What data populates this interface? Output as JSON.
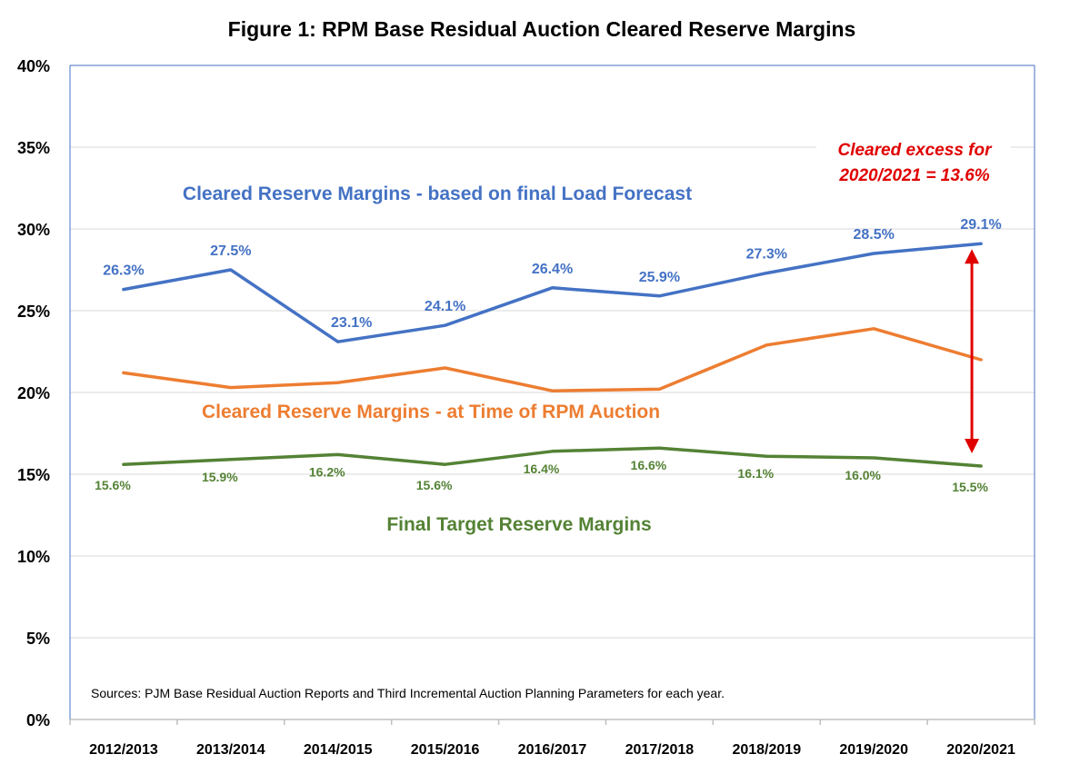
{
  "colors": {
    "cleared_final": "#4472C4",
    "cleared_auction": "#ED7D31",
    "target": "#548235",
    "annotation": "#E00000",
    "grid": "#d9d9d9",
    "frame": "#4472C4"
  },
  "chart_data": {
    "type": "line",
    "title": "Figure 1: RPM Base Residual Auction Cleared Reserve Margins",
    "categories": [
      "2012/2013",
      "2013/2014",
      "2014/2015",
      "2015/2016",
      "2016/2017",
      "2017/2018",
      "2018/2019",
      "2019/2020",
      "2020/2021"
    ],
    "y_ticks": [
      "0%",
      "5%",
      "10%",
      "15%",
      "20%",
      "25%",
      "30%",
      "35%",
      "40%"
    ],
    "ylim": [
      0,
      40
    ],
    "grid": true,
    "legend": "none",
    "series": [
      {
        "name": "Cleared Reserve Margins - based on final Load Forecast",
        "color": "#4472C4",
        "values": [
          26.3,
          27.5,
          23.1,
          24.1,
          26.4,
          25.9,
          27.3,
          28.5,
          29.1
        ],
        "labels": [
          "26.3%",
          "27.5%",
          "23.1%",
          "24.1%",
          "26.4%",
          "25.9%",
          "27.3%",
          "28.5%",
          "29.1%"
        ]
      },
      {
        "name": "Cleared Reserve Margins - at Time of RPM Auction",
        "color": "#ED7D31",
        "values": [
          21.2,
          20.3,
          20.6,
          21.5,
          20.1,
          20.2,
          22.9,
          23.9,
          22.0
        ]
      },
      {
        "name": "Final Target Reserve Margins",
        "color": "#548235",
        "values": [
          15.6,
          15.9,
          16.2,
          15.6,
          16.4,
          16.6,
          16.1,
          16.0,
          15.5
        ],
        "labels": [
          "15.6%",
          "15.9%",
          "16.2%",
          "15.6%",
          "16.4%",
          "16.6%",
          "16.1%",
          "16.0%",
          "15.5%"
        ]
      }
    ],
    "annotation": {
      "lines": [
        "Cleared excess for",
        "2020/2021 = 13.6%"
      ],
      "category": "2020/2021",
      "from": 29.1,
      "to": 15.5
    },
    "source": "Sources: PJM Base Residual Auction Reports and Third Incremental Auction Planning Parameters for each year."
  }
}
